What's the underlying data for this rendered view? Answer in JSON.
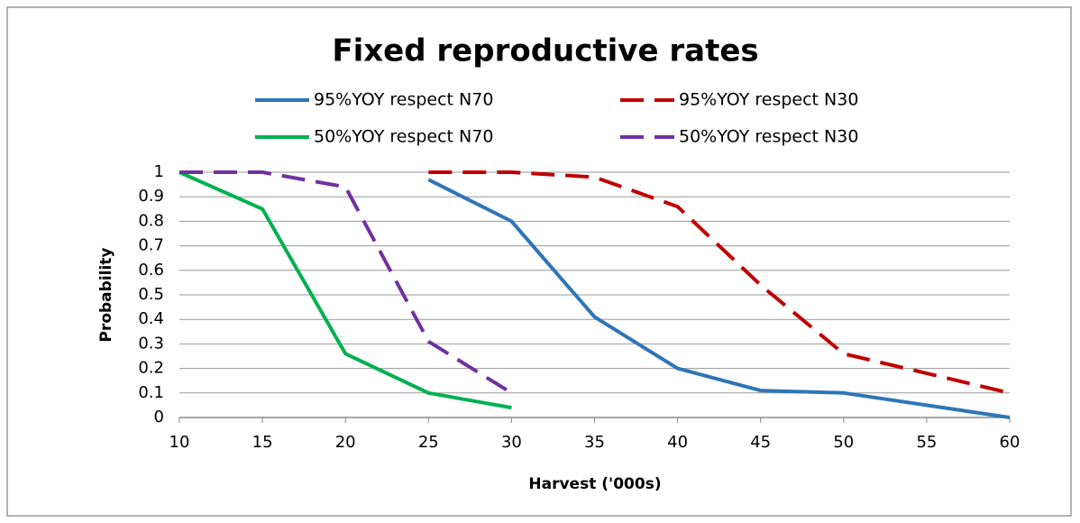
{
  "chart_data": {
    "type": "line",
    "title": "Fixed reproductive rates",
    "x_label": "Harvest ('000s)",
    "y_label": "Probability",
    "x": [
      10,
      15,
      20,
      25,
      30,
      35,
      40,
      45,
      50,
      55,
      60
    ],
    "series": [
      {
        "name": "95%YOY respect N70",
        "color": "#2e75b6",
        "dashed": false,
        "values": [
          null,
          null,
          null,
          0.97,
          0.8,
          0.41,
          0.2,
          0.11,
          0.1,
          0.05,
          0.0
        ]
      },
      {
        "name": "95%YOY respect N30",
        "color": "#c00000",
        "dashed": true,
        "values": [
          null,
          null,
          null,
          1.0,
          1.0,
          0.98,
          0.86,
          0.54,
          0.26,
          0.18,
          0.1
        ]
      },
      {
        "name": "50%YOY respect N70",
        "color": "#00b050",
        "dashed": false,
        "values": [
          1.0,
          0.85,
          0.26,
          0.1,
          0.04,
          null,
          null,
          null,
          null,
          null,
          null
        ]
      },
      {
        "name": "50%YOY respect N30",
        "color": "#7030a0",
        "dashed": true,
        "values": [
          1.0,
          1.0,
          0.94,
          0.31,
          0.1,
          null,
          null,
          null,
          null,
          null,
          null
        ]
      }
    ],
    "xlim": [
      10,
      60
    ],
    "xticks": [
      10,
      15,
      20,
      25,
      30,
      35,
      40,
      45,
      50,
      55,
      60
    ],
    "ylim": [
      0,
      1
    ],
    "yticks": [
      0,
      0.1,
      0.2,
      0.3,
      0.4,
      0.5,
      0.6,
      0.7,
      0.8,
      0.9,
      1
    ],
    "grid": true
  }
}
